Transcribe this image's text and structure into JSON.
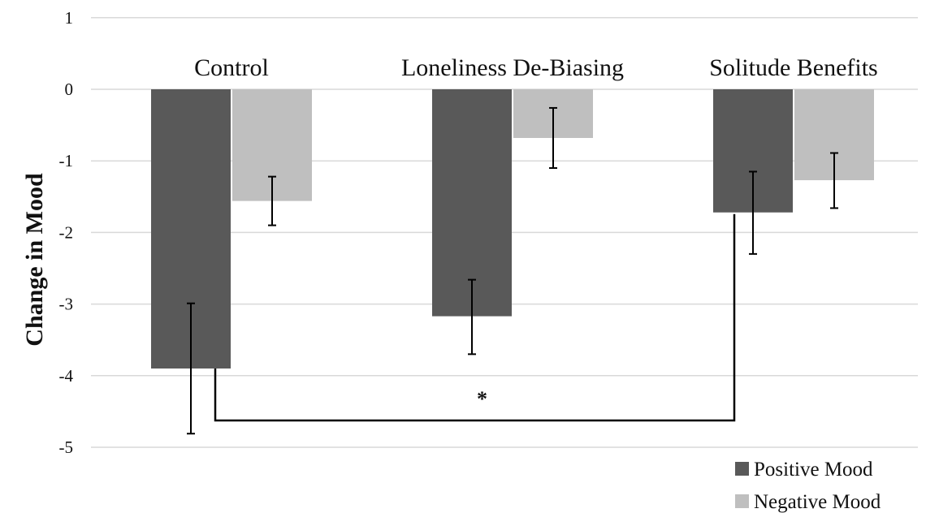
{
  "chart_data": {
    "type": "bar",
    "categories": [
      "Control",
      "Loneliness De-Biasing",
      "Solitude Benefits"
    ],
    "series": [
      {
        "name": "Positive Mood",
        "values": [
          -3.9,
          -3.17,
          -1.72
        ],
        "error_upper": [
          -2.99,
          -2.66,
          -1.15
        ],
        "error_lower": [
          -4.81,
          -3.7,
          -2.3
        ]
      },
      {
        "name": "Negative Mood",
        "values": [
          -1.56,
          -0.68,
          -1.27
        ],
        "error_upper": [
          -1.22,
          -0.26,
          -0.89
        ],
        "error_lower": [
          -1.9,
          -1.1,
          -1.66
        ]
      }
    ],
    "ylabel": "Change in Mood",
    "xlabel": "",
    "ylim": [
      -5,
      1
    ],
    "yticks": [
      1,
      0,
      -1,
      -2,
      -3,
      -4,
      -5
    ],
    "grid": true,
    "legend_position": "bottom-right",
    "significance": {
      "label": "*",
      "from": "Control",
      "to": "Solitude Benefits",
      "series": "Positive Mood"
    },
    "colors": {
      "Positive Mood": "#595959",
      "Negative Mood": "#bfbfbf",
      "grid": "#d9d9d9",
      "text": "#111111"
    }
  }
}
